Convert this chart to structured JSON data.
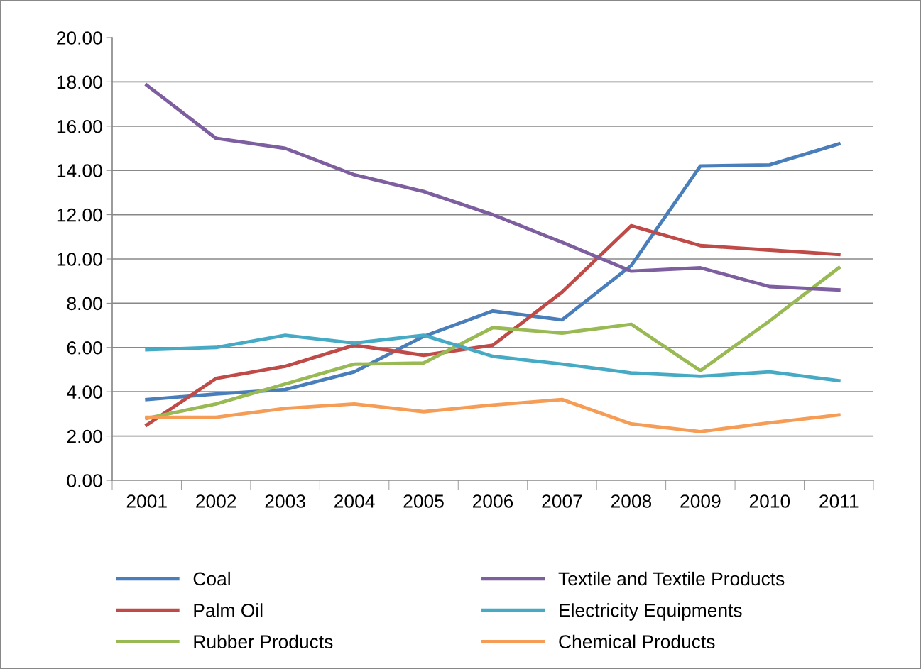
{
  "chart_data": {
    "type": "line",
    "categories": [
      "2001",
      "2002",
      "2003",
      "2004",
      "2005",
      "2006",
      "2007",
      "2008",
      "2009",
      "2010",
      "2011"
    ],
    "series": [
      {
        "name": "Coal",
        "color": "#4a7ebb",
        "values": [
          3.65,
          3.9,
          4.1,
          4.9,
          6.5,
          7.65,
          7.25,
          9.7,
          14.2,
          14.25,
          15.2
        ]
      },
      {
        "name": "Palm Oil",
        "color": "#be4b48",
        "values": [
          2.5,
          4.6,
          5.15,
          6.1,
          5.65,
          6.1,
          8.5,
          11.5,
          10.6,
          10.4,
          10.2
        ]
      },
      {
        "name": "Rubber Products",
        "color": "#98b954",
        "values": [
          2.8,
          3.45,
          4.35,
          5.25,
          5.3,
          6.9,
          6.65,
          7.05,
          4.95,
          7.2,
          9.6
        ]
      },
      {
        "name": "Textile and Textile Products",
        "color": "#7d5fa0",
        "values": [
          17.85,
          15.45,
          15.0,
          13.8,
          13.05,
          12.0,
          10.75,
          9.45,
          9.6,
          8.75,
          8.6
        ]
      },
      {
        "name": "Electricity Equipments",
        "color": "#46aac5",
        "values": [
          5.9,
          6.0,
          6.55,
          6.2,
          6.55,
          5.6,
          5.25,
          4.85,
          4.7,
          4.9,
          4.5
        ]
      },
      {
        "name": "Chemical Products",
        "color": "#f59d56",
        "values": [
          2.85,
          2.85,
          3.25,
          3.45,
          3.1,
          3.4,
          3.65,
          2.55,
          2.2,
          2.6,
          2.95
        ]
      }
    ],
    "ylim": [
      0,
      20
    ],
    "yticks": [
      {
        "value": 0,
        "label": "0.00"
      },
      {
        "value": 2,
        "label": "2.00"
      },
      {
        "value": 4,
        "label": "4.00"
      },
      {
        "value": 6,
        "label": "6.00"
      },
      {
        "value": 8,
        "label": "8.00"
      },
      {
        "value": 10,
        "label": "10.00"
      },
      {
        "value": 12,
        "label": "12.00"
      },
      {
        "value": 14,
        "label": "14.00"
      },
      {
        "value": 16,
        "label": "16.00"
      },
      {
        "value": 18,
        "label": "18.00"
      },
      {
        "value": 20,
        "label": "20.00"
      }
    ],
    "grid": "y",
    "legend": "bottom",
    "marker": "none",
    "line_style": "solid"
  }
}
